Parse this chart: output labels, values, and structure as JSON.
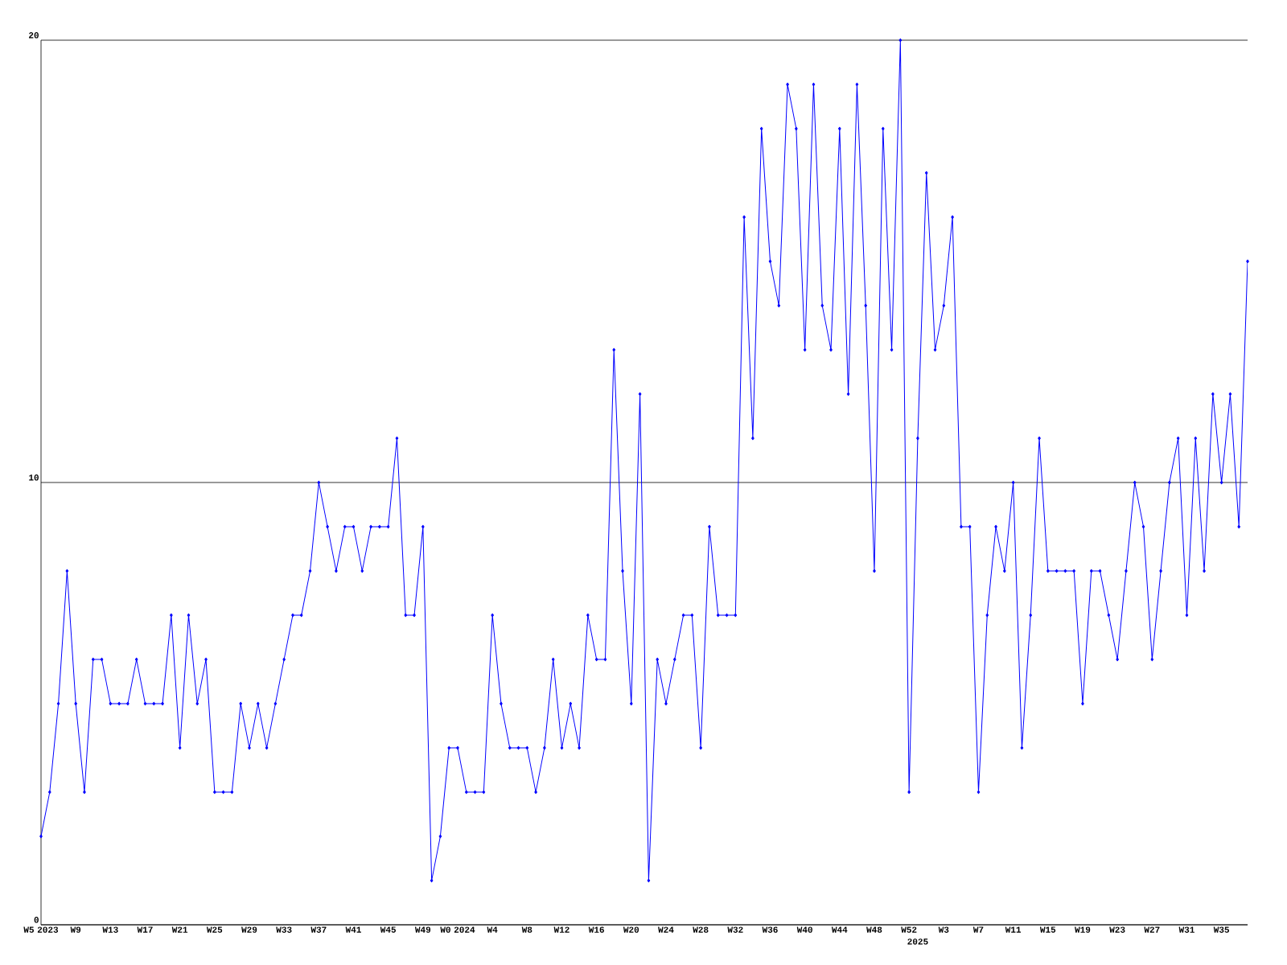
{
  "chart_data": {
    "type": "line",
    "categories": [
      "W5 2023",
      null,
      null,
      null,
      "W9",
      null,
      null,
      null,
      "W13",
      null,
      null,
      null,
      "W17",
      null,
      null,
      null,
      "W21",
      null,
      null,
      null,
      "W25",
      null,
      null,
      null,
      "W29",
      null,
      null,
      null,
      "W33",
      null,
      null,
      null,
      "W37",
      null,
      null,
      null,
      "W41",
      null,
      null,
      null,
      "W45",
      null,
      null,
      null,
      "W49",
      null,
      null,
      null,
      "W0 2024",
      null,
      null,
      null,
      "W4",
      null,
      null,
      null,
      "W8",
      null,
      null,
      null,
      "W12",
      null,
      null,
      null,
      "W16",
      null,
      null,
      null,
      "W20",
      null,
      null,
      null,
      "W24",
      null,
      null,
      null,
      "W28",
      null,
      null,
      null,
      "W32",
      null,
      null,
      null,
      "W36",
      null,
      null,
      null,
      "W40",
      null,
      null,
      null,
      "W44",
      null,
      null,
      null,
      "W48",
      null,
      null,
      null,
      "W52",
      "2025",
      null,
      null,
      "W3",
      null,
      null,
      null,
      "W7",
      null,
      null,
      null,
      "W11",
      null,
      null,
      null,
      "W15",
      null,
      null,
      null,
      "W19",
      null,
      null,
      null,
      "W23",
      null,
      null,
      null,
      "W27",
      null,
      null,
      null,
      "W31",
      null,
      null,
      null,
      "W35",
      null,
      null,
      null
    ],
    "series": [
      {
        "color": "#0000ff",
        "values": [
          2,
          3,
          5,
          8,
          5,
          3,
          6,
          6,
          5,
          5,
          5,
          6,
          5,
          5,
          5,
          7,
          4,
          7,
          5,
          6,
          3,
          3,
          3,
          5,
          4,
          5,
          4,
          5,
          6,
          7,
          7,
          8,
          10,
          9,
          8,
          9,
          9,
          8,
          9,
          9,
          9,
          11,
          7,
          7,
          9,
          1,
          2,
          4,
          4,
          3,
          3,
          3,
          7,
          5,
          4,
          4,
          4,
          3,
          4,
          6,
          4,
          5,
          4,
          7,
          6,
          6,
          13,
          8,
          5,
          12,
          1,
          6,
          5,
          6,
          7,
          7,
          4,
          9,
          7,
          7,
          7,
          16,
          11,
          18,
          15,
          14,
          19,
          18,
          13,
          19,
          14,
          13,
          18,
          12,
          19,
          14,
          8,
          18,
          13,
          20,
          3,
          11,
          17,
          13,
          14,
          16,
          9,
          9,
          3,
          7,
          9,
          8,
          10,
          4,
          7,
          11,
          8,
          8,
          8,
          8,
          5,
          8,
          8,
          7,
          6,
          8,
          10,
          9,
          6,
          8,
          10,
          11,
          7,
          11,
          8,
          12,
          10,
          12,
          9,
          15
        ]
      }
    ],
    "ylim": [
      0,
      20
    ],
    "yticks": [
      0,
      10,
      20
    ],
    "grid": "y",
    "marker": "diamond",
    "line_style": "solid"
  }
}
